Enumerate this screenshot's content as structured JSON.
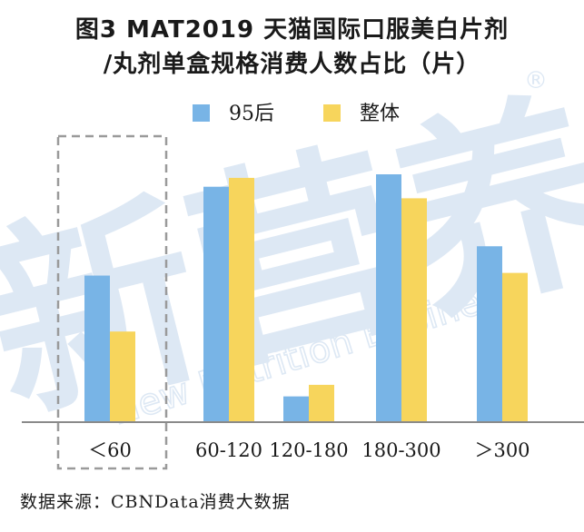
{
  "title_line1": "图3 MAT2019 天猫国际口服美白片剂",
  "title_line2": "/丸剂单盒规格消费人数占比（片）",
  "source": "数据来源：CBNData消费大数据",
  "watermark": {
    "cn": "新营养",
    "en": "New Nutrition Business",
    "mark": "®"
  },
  "colors": {
    "series_95": "#78b4e6",
    "series_all": "#f7d55c",
    "axis": "#8a8a8a",
    "dashed_box": "#9a9a9a",
    "watermark": "#dde8f4"
  },
  "chart_data": {
    "type": "bar",
    "categories": [
      "＜60",
      "60-120",
      "120-180",
      "180-300",
      "＞300"
    ],
    "series": [
      {
        "name": "95后",
        "values": [
          0.165,
          0.265,
          0.029,
          0.279,
          0.198
        ]
      },
      {
        "name": "整体",
        "values": [
          0.102,
          0.275,
          0.042,
          0.252,
          0.168
        ]
      }
    ],
    "ylim": [
      0,
      0.3
    ],
    "highlight_category": "＜60",
    "legend_position": "top-center",
    "grid": false
  }
}
